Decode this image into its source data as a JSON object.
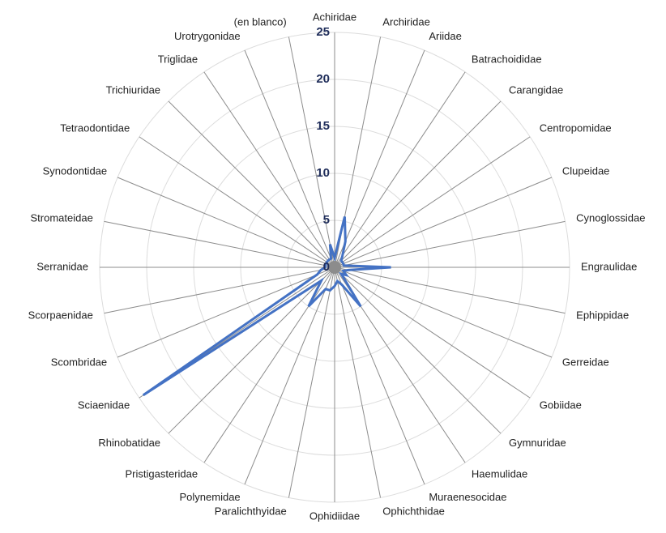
{
  "chart_data": {
    "type": "radar",
    "categories": [
      "Achiridae",
      "Archiridae",
      "Ariidae",
      "Batrachoididae",
      "Carangidae",
      "Centropomidae",
      "Clupeidae",
      "Cynoglossidae",
      "Engraulidae",
      "Ephippidae",
      "Gerreidae",
      "Gobiidae",
      "Gymnuridae",
      "Haemulidae",
      "Muraenesocidae",
      "Ophichthidae",
      "Ophidiidae",
      "Paralichthyidae",
      "Polynemidae",
      "Pristigasteridae",
      "Rhinobatidae",
      "Sciaenidae",
      "Scombridae",
      "Scorpaenidae",
      "Serranidae",
      "Stromateidae",
      "Synodontidae",
      "Tetraodontidae",
      "Trichiuridae",
      "Triglidae",
      "Urotrygonidae",
      "(en blanco)"
    ],
    "values": [
      1,
      5.5,
      3,
      1.5,
      1,
      1,
      1,
      1,
      6,
      1.5,
      1,
      1.5,
      1,
      5,
      2,
      1.5,
      2,
      2.5,
      2.5,
      5,
      2,
      24.5,
      2,
      1.5,
      1,
      1,
      1,
      1,
      1,
      1,
      1,
      2.5
    ],
    "color": "#4472c4",
    "ylim": [
      0,
      25
    ],
    "yticks": [
      0,
      5,
      10,
      15,
      20,
      25
    ],
    "grid": true
  }
}
